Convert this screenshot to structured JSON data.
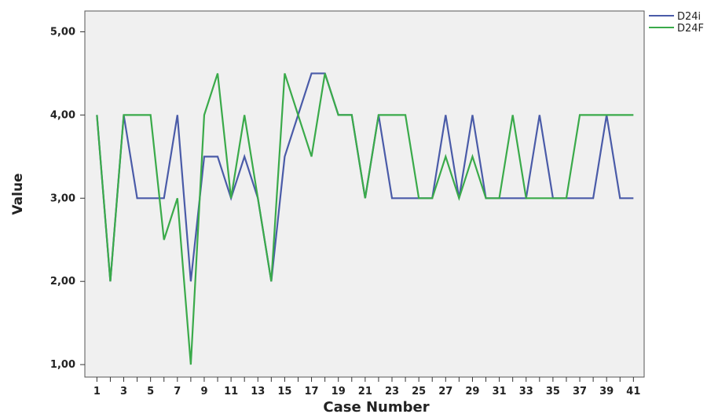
{
  "chart_data": {
    "type": "line",
    "xlabel": "Case Number",
    "ylabel": "Value",
    "x": [
      1,
      2,
      3,
      4,
      5,
      6,
      7,
      8,
      9,
      10,
      11,
      12,
      13,
      14,
      15,
      16,
      17,
      18,
      19,
      20,
      21,
      22,
      23,
      24,
      25,
      26,
      27,
      28,
      29,
      30,
      31,
      32,
      33,
      34,
      35,
      36,
      37,
      38,
      39,
      40,
      41
    ],
    "x_tick_labels": [
      "1",
      "3",
      "5",
      "7",
      "9",
      "11",
      "13",
      "15",
      "17",
      "19",
      "21",
      "23",
      "25",
      "27",
      "29",
      "31",
      "33",
      "35",
      "37",
      "39",
      "41"
    ],
    "y_tick_labels": [
      "1,00",
      "2,00",
      "3,00",
      "4,00",
      "5,00"
    ],
    "ylim": [
      0.85,
      5.25
    ],
    "xlim": [
      0.1,
      41.8
    ],
    "grid": false,
    "legend_position": "top-right outside",
    "series": [
      {
        "name": "D24i",
        "color": "#4a5ba8",
        "values": [
          4,
          2,
          4,
          3,
          3,
          3,
          4,
          2,
          3.5,
          3.5,
          3,
          3.5,
          3,
          2,
          3.5,
          4,
          4.5,
          4.5,
          4,
          4,
          3,
          4,
          3,
          3,
          3,
          3,
          4,
          3,
          4,
          3,
          3,
          3,
          3,
          4,
          3,
          3,
          3,
          3,
          4,
          3,
          3
        ]
      },
      {
        "name": "D24F",
        "color": "#3aaa4a",
        "values": [
          4,
          2,
          4,
          4,
          4,
          2.5,
          3,
          1,
          4,
          4.5,
          3,
          4,
          3,
          2,
          4.5,
          4,
          3.5,
          4.5,
          4,
          4,
          3,
          4,
          4,
          4,
          3,
          3,
          3.5,
          3,
          3.5,
          3,
          3,
          4,
          3,
          3,
          3,
          3,
          4,
          4,
          4,
          4,
          4
        ]
      }
    ]
  }
}
